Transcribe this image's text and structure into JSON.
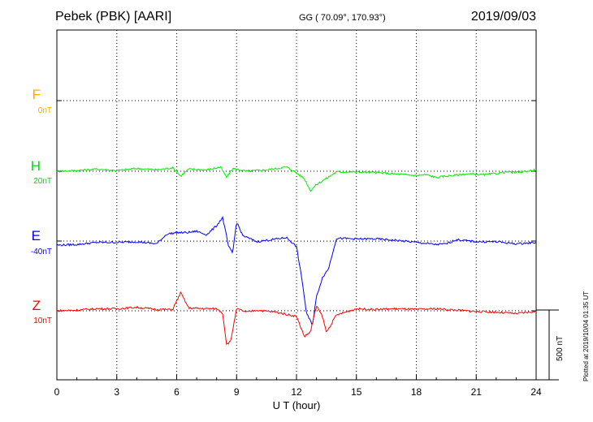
{
  "header": {
    "station": "Pebek (PBK)  [AARI]",
    "coords": "GG ( 70.09°, 170.93°)",
    "date": "2019/09/03"
  },
  "footer": {
    "xlabel": "U T (hour)",
    "plotted": "Plotted at 2019/10/04 01:35 UT",
    "scale_label": "500 nT"
  },
  "chart_data": {
    "type": "line",
    "xlabel": "U T (hour)",
    "xlim": [
      0,
      24
    ],
    "x_ticks": [
      0,
      3,
      6,
      9,
      12,
      15,
      18,
      21,
      24
    ],
    "x_tick_labels": [
      "0",
      "3",
      "6",
      "9",
      "12",
      "15",
      "18",
      "21",
      "24"
    ],
    "grid": true,
    "scale_bar_nT": 500,
    "series": [
      {
        "name": "F",
        "baseline": "0nT",
        "color": "#ffaa00",
        "points": []
      },
      {
        "name": "H",
        "baseline": "20nT",
        "color": "#00ee00",
        "points": [
          [
            0,
            0
          ],
          [
            1,
            5
          ],
          [
            2,
            15
          ],
          [
            3,
            5
          ],
          [
            4,
            20
          ],
          [
            5,
            10
          ],
          [
            5.8,
            25
          ],
          [
            6.2,
            -35
          ],
          [
            6.6,
            15
          ],
          [
            7.5,
            10
          ],
          [
            8.2,
            30
          ],
          [
            8.5,
            -45
          ],
          [
            8.8,
            20
          ],
          [
            9.5,
            0
          ],
          [
            10.5,
            10
          ],
          [
            11.5,
            30
          ],
          [
            12,
            -10
          ],
          [
            12.4,
            -55
          ],
          [
            12.7,
            -140
          ],
          [
            13,
            -95
          ],
          [
            13.4,
            -60
          ],
          [
            14,
            -5
          ],
          [
            15,
            -5
          ],
          [
            16,
            -10
          ],
          [
            17,
            -20
          ],
          [
            18,
            -30
          ],
          [
            18.5,
            -25
          ],
          [
            19,
            -45
          ],
          [
            19.5,
            -35
          ],
          [
            20.5,
            -20
          ],
          [
            21.5,
            -25
          ],
          [
            22.5,
            -5
          ],
          [
            23,
            -10
          ],
          [
            24,
            10
          ]
        ]
      },
      {
        "name": "E",
        "baseline": "-40nT",
        "color": "#0000ff",
        "points": [
          [
            0,
            -30
          ],
          [
            1,
            -25
          ],
          [
            2,
            -10
          ],
          [
            3,
            -10
          ],
          [
            4,
            -5
          ],
          [
            5,
            -20
          ],
          [
            5.5,
            50
          ],
          [
            6,
            60
          ],
          [
            6.5,
            60
          ],
          [
            7,
            70
          ],
          [
            7.5,
            45
          ],
          [
            8,
            110
          ],
          [
            8.3,
            170
          ],
          [
            8.6,
            -40
          ],
          [
            8.8,
            -90
          ],
          [
            9,
            140
          ],
          [
            9.3,
            40
          ],
          [
            10,
            -5
          ],
          [
            11,
            15
          ],
          [
            11.5,
            25
          ],
          [
            12,
            -40
          ],
          [
            12.3,
            -300
          ],
          [
            12.5,
            -520
          ],
          [
            12.8,
            -600
          ],
          [
            13,
            -400
          ],
          [
            13.3,
            -260
          ],
          [
            13.6,
            -200
          ],
          [
            14,
            20
          ],
          [
            15,
            15
          ],
          [
            16,
            15
          ],
          [
            17,
            5
          ],
          [
            18,
            -10
          ],
          [
            19,
            -25
          ],
          [
            19.5,
            -20
          ],
          [
            20,
            10
          ],
          [
            21,
            -5
          ],
          [
            22,
            -5
          ],
          [
            23,
            -20
          ],
          [
            24,
            -10
          ]
        ]
      },
      {
        "name": "Z",
        "baseline": "10nT",
        "color": "#ff0000",
        "points": [
          [
            0,
            0
          ],
          [
            1,
            5
          ],
          [
            2,
            15
          ],
          [
            3,
            15
          ],
          [
            4,
            25
          ],
          [
            5,
            10
          ],
          [
            5.8,
            10
          ],
          [
            6.2,
            130
          ],
          [
            6.6,
            20
          ],
          [
            7.5,
            15
          ],
          [
            8,
            15
          ],
          [
            8.3,
            -15
          ],
          [
            8.5,
            -240
          ],
          [
            8.7,
            -220
          ],
          [
            9,
            15
          ],
          [
            9.5,
            -10
          ],
          [
            10,
            5
          ],
          [
            11,
            -10
          ],
          [
            12,
            -40
          ],
          [
            12.4,
            -185
          ],
          [
            12.7,
            -150
          ],
          [
            13,
            35
          ],
          [
            13.3,
            -40
          ],
          [
            13.5,
            -155
          ],
          [
            14,
            -30
          ],
          [
            15,
            15
          ],
          [
            16,
            10
          ],
          [
            17,
            15
          ],
          [
            18,
            10
          ],
          [
            19,
            15
          ],
          [
            20,
            5
          ],
          [
            21,
            -5
          ],
          [
            22,
            -10
          ],
          [
            23,
            -20
          ],
          [
            24,
            -5
          ]
        ]
      }
    ]
  }
}
